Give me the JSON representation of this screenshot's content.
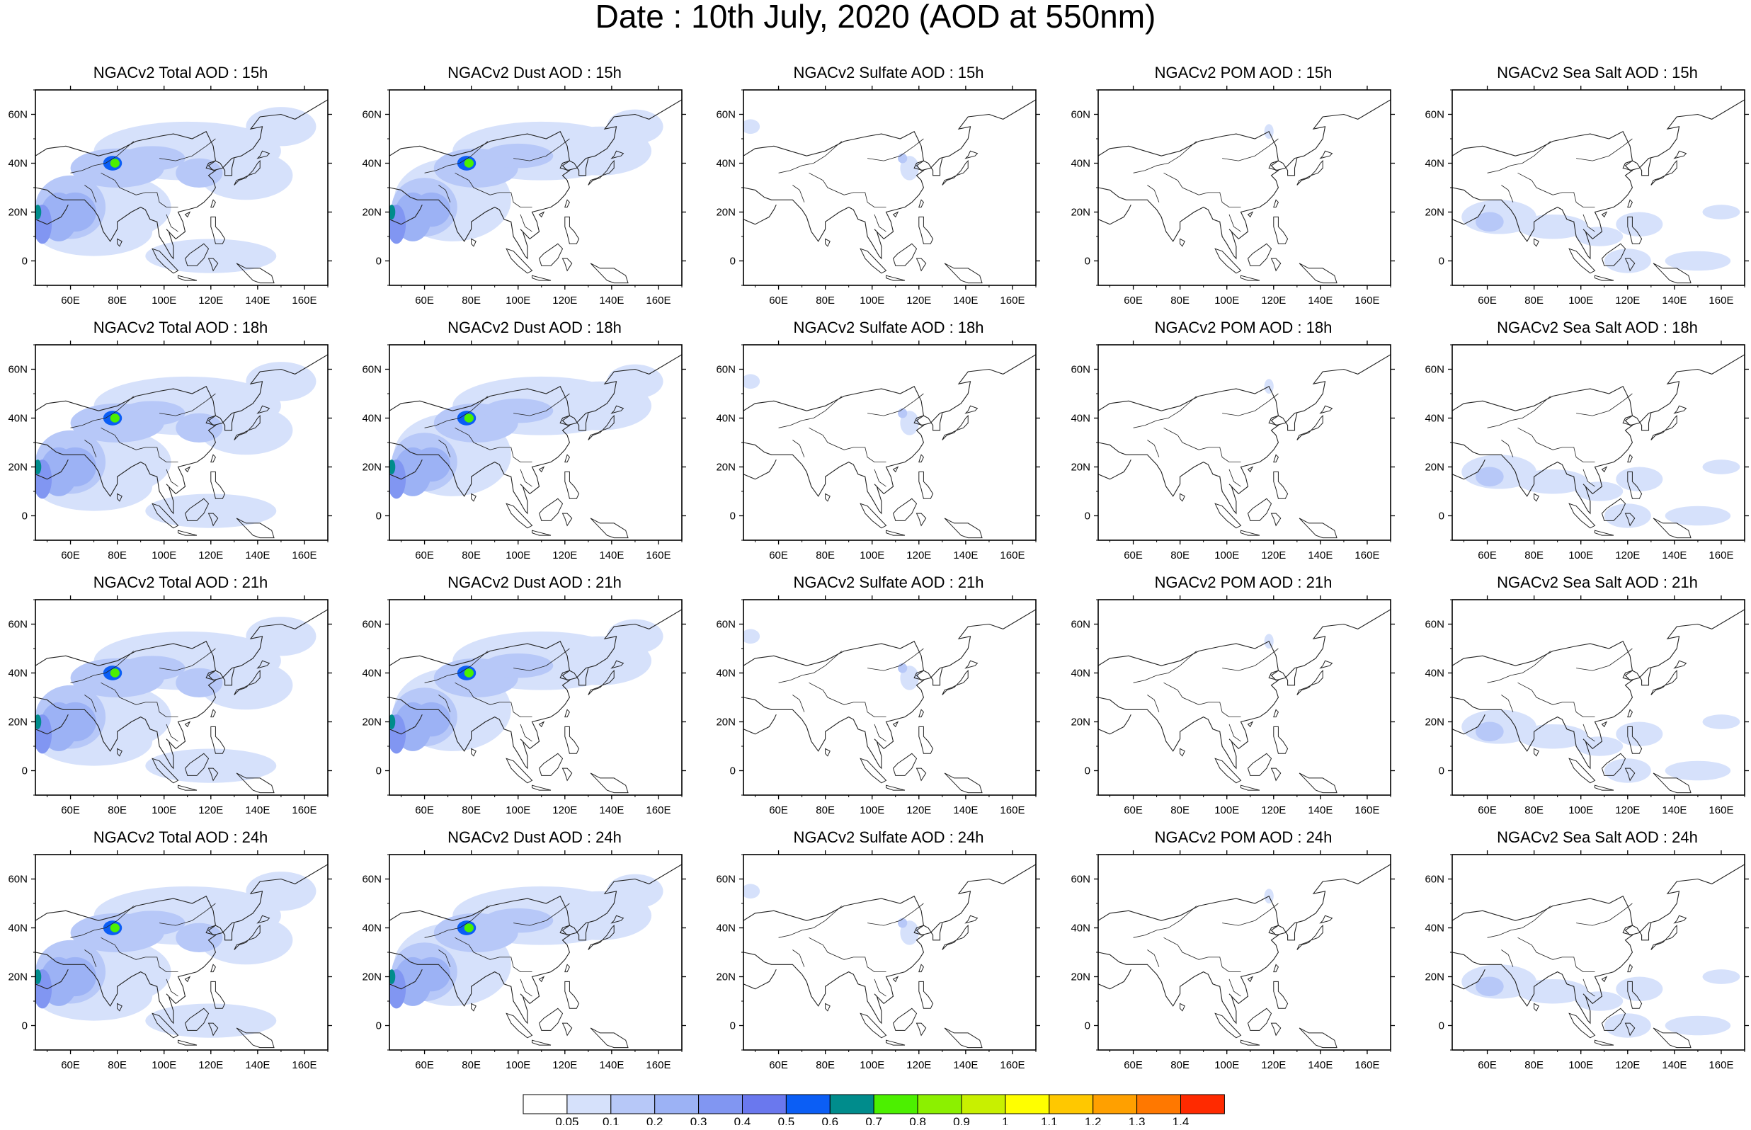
{
  "title": "Date : 10th July, 2020 (AOD at 550nm)",
  "map": {
    "lat_ticks": [
      "60N",
      "40N",
      "20N",
      "0"
    ],
    "lon_ticks": [
      "60E",
      "80E",
      "100E",
      "120E",
      "140E",
      "160E"
    ]
  },
  "panels": [
    [
      "NGACv2 Total AOD : 15h",
      "NGACv2 Dust AOD : 15h",
      "NGACv2 Sulfate AOD : 15h",
      "NGACv2 POM AOD : 15h",
      "NGACv2 Sea Salt AOD : 15h"
    ],
    [
      "NGACv2 Total AOD : 18h",
      "NGACv2 Dust AOD : 18h",
      "NGACv2 Sulfate AOD : 18h",
      "NGACv2 POM AOD : 18h",
      "NGACv2 Sea Salt AOD : 18h"
    ],
    [
      "NGACv2 Total AOD : 21h",
      "NGACv2 Dust AOD : 21h",
      "NGACv2 Sulfate AOD : 21h",
      "NGACv2 POM AOD : 21h",
      "NGACv2 Sea Salt AOD : 21h"
    ],
    [
      "NGACv2 Total AOD : 24h",
      "NGACv2 Dust AOD : 24h",
      "NGACv2 Sulfate AOD : 24h",
      "NGACv2 POM AOD : 24h",
      "NGACv2 Sea Salt  AOD : 24h"
    ]
  ],
  "colorbar": {
    "labels": [
      "0.05",
      "0.1",
      "0.2",
      "0.3",
      "0.4",
      "0.5",
      "0.6",
      "0.7",
      "0.8",
      "0.9",
      "1",
      "1.1",
      "1.2",
      "1.3",
      "1.4"
    ],
    "colors": [
      "#ffffff",
      "#d6e1fb",
      "#b7c8f8",
      "#9cb2f5",
      "#8196f2",
      "#6a78ee",
      "#0b5ef5",
      "#008c8c",
      "#4cf000",
      "#8cf000",
      "#c8f000",
      "#ffff00",
      "#ffc800",
      "#ffa000",
      "#ff7800",
      "#ff2a00"
    ]
  }
}
